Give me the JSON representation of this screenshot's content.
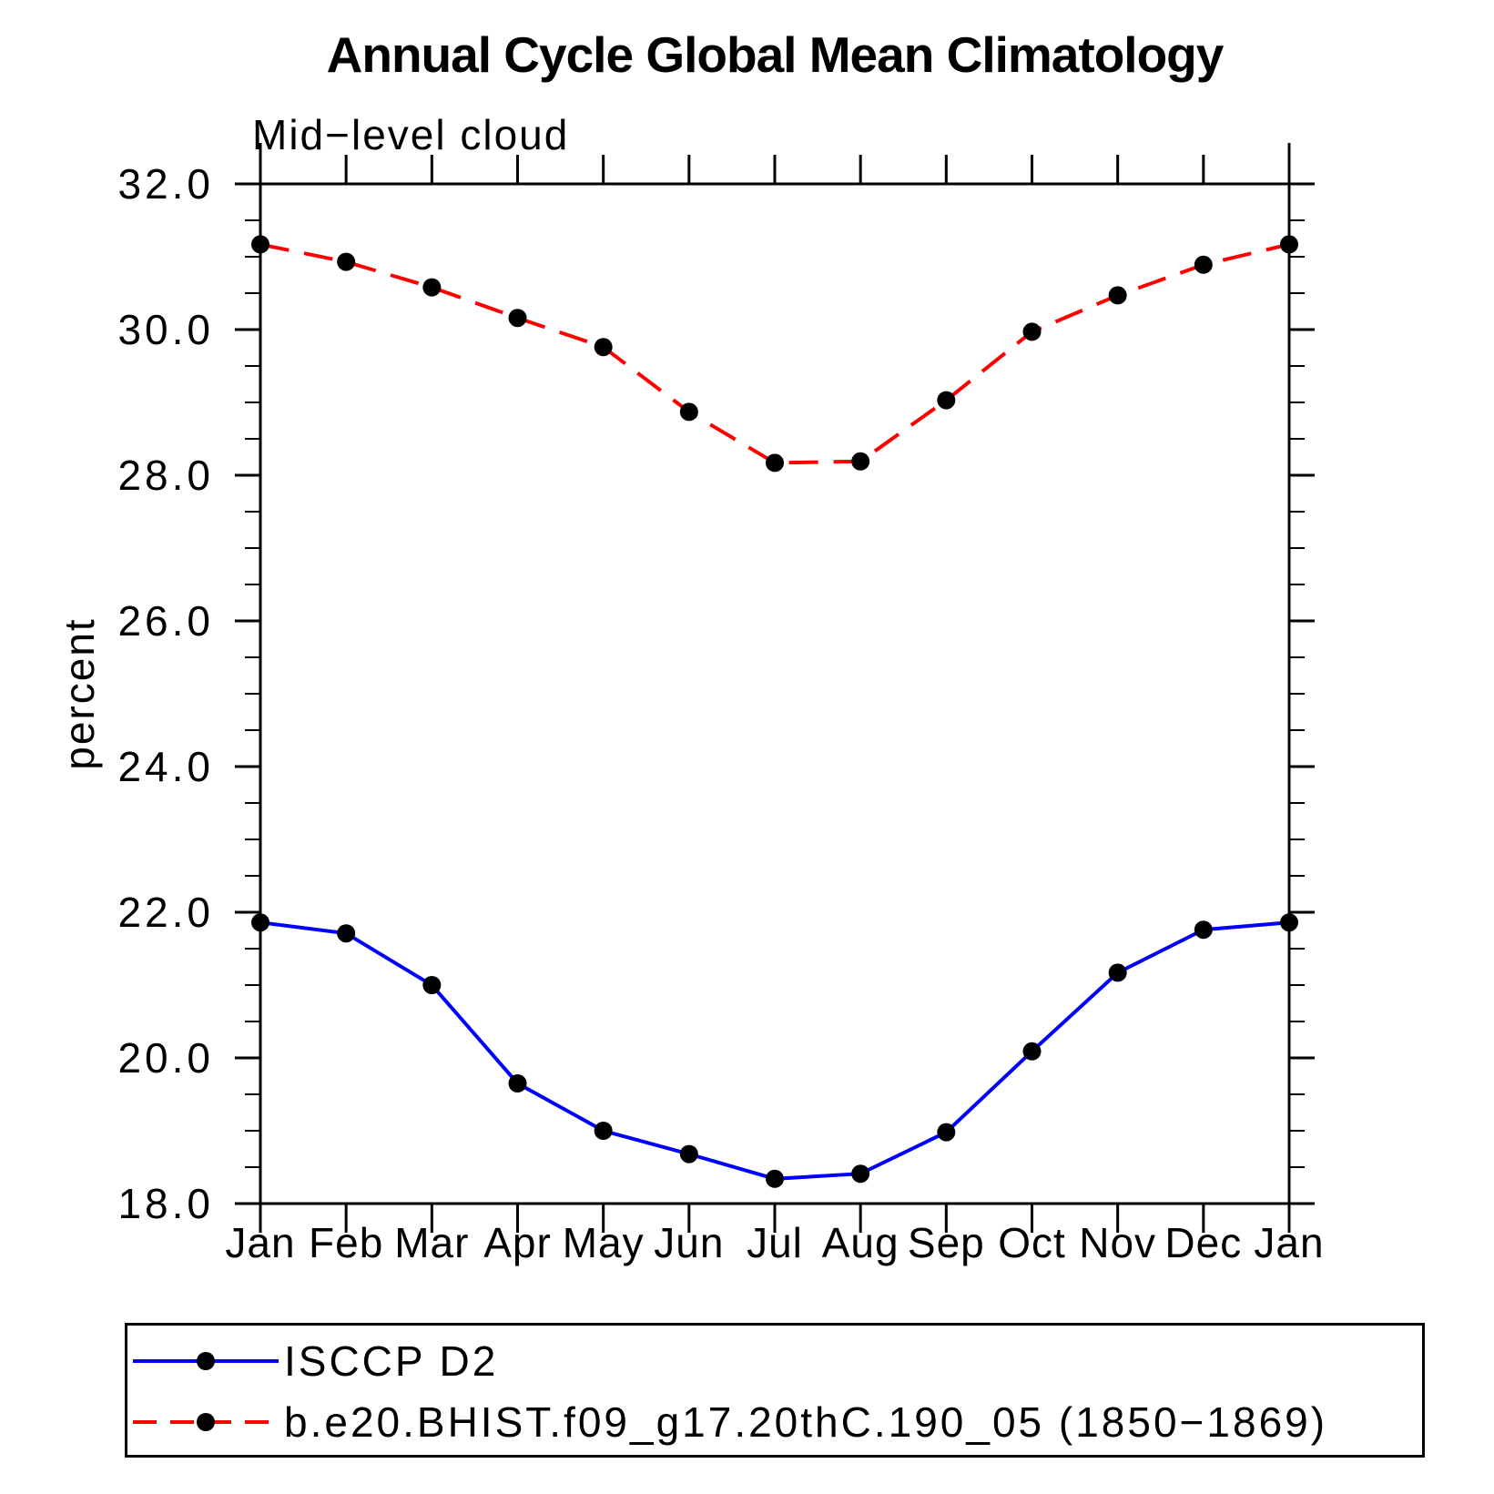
{
  "header": {
    "title": "Annual Cycle Global Mean Climatology",
    "subtitle": "Mid−level cloud"
  },
  "chart_data": {
    "type": "line",
    "title": "Annual Cycle Global Mean Climatology",
    "subtitle": "Mid−level cloud",
    "xlabel": "",
    "ylabel": "percent",
    "categories": [
      "Jan",
      "Feb",
      "Mar",
      "Apr",
      "May",
      "Jun",
      "Jul",
      "Aug",
      "Sep",
      "Oct",
      "Nov",
      "Dec",
      "Jan"
    ],
    "ylim": [
      18.0,
      32.0
    ],
    "ytick_major": [
      18.0,
      20.0,
      22.0,
      24.0,
      26.0,
      28.0,
      30.0,
      32.0
    ],
    "ytick_labels": [
      "18.0",
      "20.0",
      "22.0",
      "24.0",
      "26.0",
      "28.0",
      "30.0",
      "32.0"
    ],
    "ytick_minor_step": 0.5,
    "grid": false,
    "legend_position": "bottom",
    "axis_color": "#000000",
    "marker_color": "#000000",
    "series": [
      {
        "name": "ISCCP D2",
        "color": "#0000FF",
        "style": "solid",
        "marker": "circle",
        "values": [
          21.86,
          21.71,
          21.0,
          19.65,
          19.0,
          18.68,
          18.34,
          18.41,
          18.98,
          20.09,
          21.17,
          21.76,
          21.86
        ]
      },
      {
        "name": "b.e20.BHIST.f09_g17.20thC.190_05 (1850−1869)",
        "color": "#FF0000",
        "style": "dashed",
        "marker": "circle",
        "values": [
          31.17,
          30.93,
          30.58,
          30.16,
          29.76,
          28.87,
          28.17,
          28.19,
          29.03,
          29.97,
          30.47,
          30.89,
          31.17
        ]
      }
    ]
  }
}
